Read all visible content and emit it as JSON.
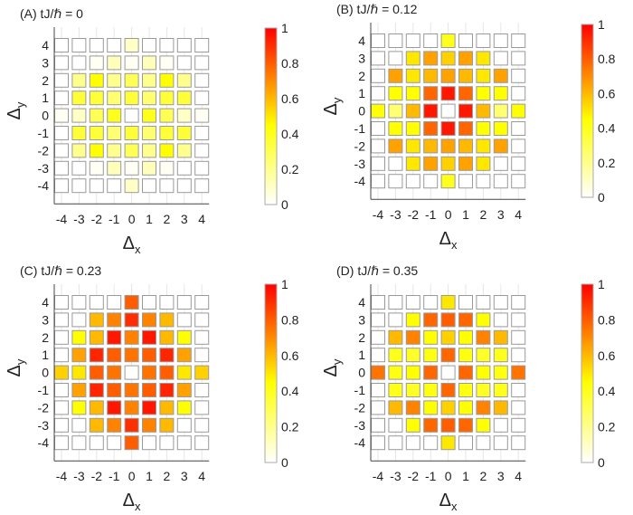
{
  "chart_data": [
    {
      "type": "heatmap",
      "title": "(A) tJ/ℏ = 0",
      "xlabel": "Δx",
      "ylabel": "Δy",
      "x": [
        -4,
        -3,
        -2,
        -1,
        0,
        1,
        2,
        3,
        4
      ],
      "y": [
        4,
        3,
        2,
        1,
        0,
        -1,
        -2,
        -3,
        -4
      ],
      "colorbar": {
        "range": [
          0,
          1
        ],
        "ticks": [
          "0",
          "0.2",
          "0.4",
          "0.6",
          "0.8",
          "1"
        ],
        "colors": [
          "#ffffff",
          "#ffff00",
          "#ff0000"
        ]
      },
      "values": [
        [
          0,
          0,
          0,
          0,
          0.1,
          0,
          0,
          0,
          0
        ],
        [
          0,
          0,
          0.02,
          0.12,
          0.02,
          0.12,
          0.02,
          0,
          0
        ],
        [
          0,
          0.2,
          0.45,
          0.2,
          0.3,
          0.2,
          0.45,
          0.2,
          0
        ],
        [
          0,
          0.35,
          0.35,
          0.25,
          0.35,
          0.25,
          0.35,
          0.35,
          0
        ],
        [
          0.02,
          0.1,
          0.3,
          0.4,
          0,
          0.4,
          0.3,
          0.1,
          0.02
        ],
        [
          0,
          0.35,
          0.35,
          0.25,
          0.35,
          0.25,
          0.35,
          0.35,
          0
        ],
        [
          0,
          0.2,
          0.45,
          0.2,
          0.3,
          0.2,
          0.45,
          0.2,
          0
        ],
        [
          0,
          0,
          0.02,
          0.12,
          0.02,
          0.12,
          0.02,
          0,
          0
        ],
        [
          0,
          0,
          0,
          0,
          0.1,
          0,
          0,
          0,
          0
        ]
      ]
    },
    {
      "type": "heatmap",
      "title": "(B) tJ/ℏ = 0.12",
      "xlabel": "Δx",
      "ylabel": "Δy",
      "x": [
        -4,
        -3,
        -2,
        -1,
        0,
        1,
        2,
        3,
        4
      ],
      "y": [
        4,
        3,
        2,
        1,
        0,
        -1,
        -2,
        -3,
        -4
      ],
      "colorbar": {
        "range": [
          0,
          1
        ],
        "ticks": [
          "0",
          "0.2",
          "0.4",
          "0.6",
          "0.8",
          "1"
        ],
        "colors": [
          "#ffffff",
          "#ffff00",
          "#ff0000"
        ]
      },
      "values": [
        [
          0,
          0,
          0,
          0,
          0.4,
          0,
          0,
          0,
          0
        ],
        [
          0,
          0,
          0.5,
          0.65,
          0.55,
          0.65,
          0.5,
          0,
          0
        ],
        [
          0,
          0.65,
          0.5,
          0.6,
          0.65,
          0.6,
          0.5,
          0.65,
          0
        ],
        [
          0,
          0.45,
          0.45,
          0.78,
          0.95,
          0.78,
          0.45,
          0.45,
          0
        ],
        [
          0.45,
          0.25,
          0.6,
          0.95,
          0,
          0.95,
          0.6,
          0.25,
          0.45
        ],
        [
          0,
          0.45,
          0.45,
          0.78,
          0.95,
          0.78,
          0.45,
          0.45,
          0
        ],
        [
          0,
          0.65,
          0.5,
          0.6,
          0.65,
          0.6,
          0.5,
          0.65,
          0
        ],
        [
          0,
          0,
          0.5,
          0.65,
          0.55,
          0.65,
          0.5,
          0,
          0
        ],
        [
          0,
          0,
          0,
          0,
          0.4,
          0,
          0,
          0,
          0
        ]
      ]
    },
    {
      "type": "heatmap",
      "title": "(C) tJ/ℏ = 0.23",
      "xlabel": "Δx",
      "ylabel": "Δy",
      "x": [
        -4,
        -3,
        -2,
        -1,
        0,
        1,
        2,
        3,
        4
      ],
      "y": [
        4,
        3,
        2,
        1,
        0,
        -1,
        -2,
        -3,
        -4
      ],
      "colorbar": {
        "range": [
          0,
          1
        ],
        "ticks": [
          "0",
          "0.2",
          "0.4",
          "0.6",
          "0.8",
          "1"
        ],
        "colors": [
          "#ffffff",
          "#ffff00",
          "#ff0000"
        ]
      },
      "values": [
        [
          0,
          0,
          0,
          0,
          0.8,
          0,
          0,
          0,
          0
        ],
        [
          0,
          0,
          0.6,
          0.72,
          0.9,
          0.72,
          0.6,
          0,
          0
        ],
        [
          0,
          0.45,
          0.6,
          0.95,
          0.72,
          0.95,
          0.6,
          0.45,
          0
        ],
        [
          0,
          0.65,
          0.92,
          0.8,
          0.75,
          0.8,
          0.92,
          0.65,
          0
        ],
        [
          0.55,
          0.5,
          0.8,
          0.75,
          0,
          0.75,
          0.8,
          0.5,
          0.55
        ],
        [
          0,
          0.65,
          0.92,
          0.8,
          0.75,
          0.8,
          0.92,
          0.65,
          0
        ],
        [
          0,
          0.45,
          0.6,
          0.95,
          0.72,
          0.95,
          0.6,
          0.45,
          0
        ],
        [
          0,
          0,
          0.6,
          0.72,
          0.9,
          0.72,
          0.6,
          0,
          0
        ],
        [
          0,
          0,
          0,
          0,
          0.8,
          0,
          0,
          0,
          0
        ]
      ]
    },
    {
      "type": "heatmap",
      "title": "(D) tJ/ℏ = 0.35",
      "xlabel": "Δx",
      "ylabel": "Δy",
      "x": [
        -4,
        -3,
        -2,
        -1,
        0,
        1,
        2,
        3,
        4
      ],
      "y": [
        4,
        3,
        2,
        1,
        0,
        -1,
        -2,
        -3,
        -4
      ],
      "colorbar": {
        "range": [
          0,
          1
        ],
        "ticks": [
          "0",
          "0.2",
          "0.4",
          "0.6",
          "0.8",
          "1"
        ],
        "colors": [
          "#ffffff",
          "#ffff00",
          "#ff0000"
        ]
      },
      "values": [
        [
          0,
          0,
          0,
          0,
          0.5,
          0,
          0,
          0,
          0
        ],
        [
          0,
          0,
          0.45,
          0.78,
          0.8,
          0.78,
          0.45,
          0,
          0
        ],
        [
          0,
          0.6,
          0.72,
          0.45,
          0.55,
          0.45,
          0.72,
          0.6,
          0
        ],
        [
          0,
          0.4,
          0.38,
          0.42,
          0.78,
          0.42,
          0.38,
          0.4,
          0
        ],
        [
          0.75,
          0.42,
          0.45,
          0.78,
          0,
          0.78,
          0.45,
          0.42,
          0.75
        ],
        [
          0,
          0.4,
          0.38,
          0.42,
          0.78,
          0.42,
          0.38,
          0.4,
          0
        ],
        [
          0,
          0.6,
          0.72,
          0.45,
          0.55,
          0.45,
          0.72,
          0.6,
          0
        ],
        [
          0,
          0,
          0.45,
          0.78,
          0.8,
          0.78,
          0.45,
          0,
          0
        ],
        [
          0,
          0,
          0,
          0,
          0.5,
          0,
          0,
          0,
          0
        ]
      ]
    }
  ]
}
